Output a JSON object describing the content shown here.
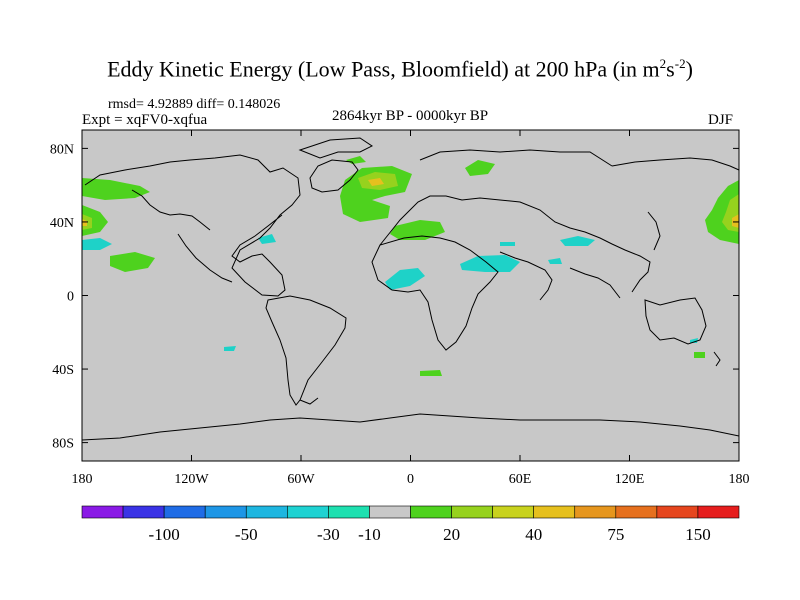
{
  "title": {
    "main": "Eddy Kinetic Energy (Low Pass, Bloomfield) at 200 hPa (in m",
    "sup1": "2",
    "mid": "s",
    "sup2": "-2",
    "close": ")"
  },
  "stats": "rmsd= 4.92889 diff= 0.148026",
  "expt": "Expt = xqFV0-xqfua",
  "period": "2864kyr BP - 0000kyr BP",
  "season": "DJF",
  "x_ticks": [
    "180",
    "120W",
    "60W",
    "0",
    "60E",
    "120E",
    "180"
  ],
  "y_ticks": [
    "80N",
    "40N",
    "0",
    "40S",
    "80S"
  ],
  "colorbar": {
    "colors": [
      "#8a1ae6",
      "#3a33e6",
      "#1f6ce6",
      "#1e96e6",
      "#1eb6e0",
      "#1ed2d2",
      "#1ee0b0",
      "#c8c8c8",
      "#4ed21e",
      "#96d21e",
      "#c8d21e",
      "#e6c01e",
      "#e6961e",
      "#e6701e",
      "#e6461e",
      "#e61e1e"
    ],
    "labels": [
      "-100",
      "-50",
      "-30",
      "-10",
      "20",
      "40",
      "75",
      "150"
    ]
  },
  "colors": {
    "ocean": "#c8c8c8",
    "coast": "#000000",
    "pos_low": "#4ed21e",
    "pos_mid": "#96d21e",
    "pos_high": "#e6c01e",
    "neg_low": "#1ed2c8"
  }
}
